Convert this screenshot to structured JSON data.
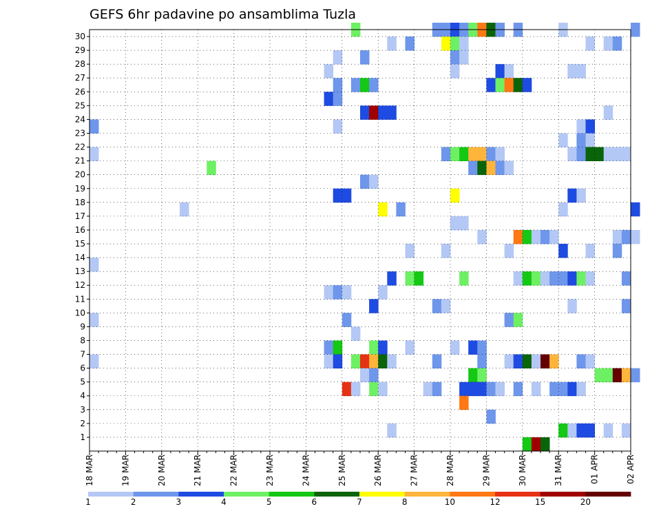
{
  "chart_data": {
    "type": "heatmap",
    "title": "GEFS 6hr padavine po ansamblima Tuzla",
    "x_tick_labels": [
      "18 MAR",
      "19 MAR",
      "20 MAR",
      "21 MAR",
      "22 MAR",
      "23 MAR",
      "24 MAR",
      "25 MAR",
      "26 MAR",
      "27 MAR",
      "28 MAR",
      "29 MAR",
      "30 MAR",
      "31 MAR",
      "01 APR",
      "02 APR"
    ],
    "y_tick_labels": [
      "1",
      "2",
      "3",
      "4",
      "5",
      "6",
      "7",
      "8",
      "9",
      "10",
      "11",
      "12",
      "13",
      "14",
      "15",
      "16",
      "17",
      "18",
      "19",
      "20",
      "21",
      "22",
      "23",
      "24",
      "25",
      "26",
      "27",
      "28",
      "29",
      "30"
    ],
    "x_range_days": [
      0,
      15
    ],
    "y_range_members": [
      0,
      30
    ],
    "grid": true,
    "grid_style": "dotted",
    "colorbar": {
      "labels": [
        "1",
        "2",
        "3",
        "4",
        "5",
        "6",
        "7",
        "8",
        "10",
        "12",
        "15",
        "20"
      ],
      "colors": [
        "#b4c8f5",
        "#6e96eb",
        "#1e4be1",
        "#6ef064",
        "#14c814",
        "#0a640a",
        "#ffff00",
        "#ffb43c",
        "#ff7814",
        "#e63214",
        "#a00000",
        "#640000"
      ]
    },
    "cells": [
      {
        "m": 30,
        "t": 29,
        "c": 3
      },
      {
        "m": 30,
        "t": 38,
        "c": 1
      },
      {
        "m": 30,
        "t": 39,
        "c": 1
      },
      {
        "m": 30,
        "t": 40,
        "c": 2
      },
      {
        "m": 30,
        "t": 41,
        "c": 1
      },
      {
        "m": 30,
        "t": 42,
        "c": 3
      },
      {
        "m": 30,
        "t": 43,
        "c": 8
      },
      {
        "m": 30,
        "t": 44,
        "c": 5
      },
      {
        "m": 30,
        "t": 45,
        "c": 1
      },
      {
        "m": 30,
        "t": 47,
        "c": 1
      },
      {
        "m": 30,
        "t": 52,
        "c": 0
      },
      {
        "m": 30,
        "t": 60,
        "c": 1
      },
      {
        "m": 29,
        "t": 33,
        "c": 0
      },
      {
        "m": 29,
        "t": 35,
        "c": 1
      },
      {
        "m": 29,
        "t": 39,
        "c": 6
      },
      {
        "m": 29,
        "t": 40,
        "c": 3
      },
      {
        "m": 29,
        "t": 41,
        "c": 0
      },
      {
        "m": 29,
        "t": 55,
        "c": 0
      },
      {
        "m": 29,
        "t": 57,
        "c": 0
      },
      {
        "m": 29,
        "t": 58,
        "c": 1
      },
      {
        "m": 28,
        "t": 27,
        "c": 0
      },
      {
        "m": 28,
        "t": 30,
        "c": 1
      },
      {
        "m": 28,
        "t": 40,
        "c": 1
      },
      {
        "m": 28,
        "t": 41,
        "c": 0
      },
      {
        "m": 27,
        "t": 26,
        "c": 0
      },
      {
        "m": 27,
        "t": 40,
        "c": 0
      },
      {
        "m": 27,
        "t": 45,
        "c": 2
      },
      {
        "m": 27,
        "t": 46,
        "c": 0
      },
      {
        "m": 27,
        "t": 53,
        "c": 0
      },
      {
        "m": 27,
        "t": 54,
        "c": 0
      },
      {
        "m": 26,
        "t": 27,
        "c": 1
      },
      {
        "m": 26,
        "t": 29,
        "c": 1
      },
      {
        "m": 26,
        "t": 30,
        "c": 4
      },
      {
        "m": 26,
        "t": 31,
        "c": 1
      },
      {
        "m": 26,
        "t": 44,
        "c": 2
      },
      {
        "m": 26,
        "t": 45,
        "c": 3
      },
      {
        "m": 26,
        "t": 46,
        "c": 8
      },
      {
        "m": 26,
        "t": 47,
        "c": 5
      },
      {
        "m": 26,
        "t": 48,
        "c": 2
      },
      {
        "m": 25,
        "t": 26,
        "c": 2
      },
      {
        "m": 25,
        "t": 27,
        "c": 1
      },
      {
        "m": 24,
        "t": 30,
        "c": 2
      },
      {
        "m": 24,
        "t": 31,
        "c": 10
      },
      {
        "m": 24,
        "t": 32,
        "c": 2
      },
      {
        "m": 24,
        "t": 33,
        "c": 2
      },
      {
        "m": 24,
        "t": 57,
        "c": 0
      },
      {
        "m": 23,
        "t": 0,
        "c": 1
      },
      {
        "m": 23,
        "t": 27,
        "c": 0
      },
      {
        "m": 23,
        "t": 54,
        "c": 0
      },
      {
        "m": 23,
        "t": 55,
        "c": 2
      },
      {
        "m": 22,
        "t": 52,
        "c": 0
      },
      {
        "m": 22,
        "t": 54,
        "c": 1
      },
      {
        "m": 22,
        "t": 55,
        "c": 0
      },
      {
        "m": 21,
        "t": 0,
        "c": 0
      },
      {
        "m": 21,
        "t": 39,
        "c": 1
      },
      {
        "m": 21,
        "t": 40,
        "c": 3
      },
      {
        "m": 21,
        "t": 41,
        "c": 4
      },
      {
        "m": 21,
        "t": 42,
        "c": 7
      },
      {
        "m": 21,
        "t": 43,
        "c": 7
      },
      {
        "m": 21,
        "t": 44,
        "c": 1
      },
      {
        "m": 21,
        "t": 45,
        "c": 0
      },
      {
        "m": 21,
        "t": 53,
        "c": 0
      },
      {
        "m": 21,
        "t": 54,
        "c": 1
      },
      {
        "m": 21,
        "t": 55,
        "c": 5
      },
      {
        "m": 21,
        "t": 56,
        "c": 5
      },
      {
        "m": 21,
        "t": 57,
        "c": 0
      },
      {
        "m": 21,
        "t": 58,
        "c": 0
      },
      {
        "m": 21,
        "t": 59,
        "c": 0
      },
      {
        "m": 20,
        "t": 13,
        "c": 3
      },
      {
        "m": 20,
        "t": 42,
        "c": 1
      },
      {
        "m": 20,
        "t": 43,
        "c": 5
      },
      {
        "m": 20,
        "t": 44,
        "c": 7
      },
      {
        "m": 20,
        "t": 45,
        "c": 1
      },
      {
        "m": 20,
        "t": 46,
        "c": 0
      },
      {
        "m": 19,
        "t": 30,
        "c": 1
      },
      {
        "m": 19,
        "t": 31,
        "c": 0
      },
      {
        "m": 18,
        "t": 27,
        "c": 2
      },
      {
        "m": 18,
        "t": 28,
        "c": 2
      },
      {
        "m": 18,
        "t": 40,
        "c": 6
      },
      {
        "m": 18,
        "t": 53,
        "c": 2
      },
      {
        "m": 18,
        "t": 54,
        "c": 0
      },
      {
        "m": 17,
        "t": 10,
        "c": 0
      },
      {
        "m": 17,
        "t": 32,
        "c": 6
      },
      {
        "m": 17,
        "t": 34,
        "c": 1
      },
      {
        "m": 17,
        "t": 52,
        "c": 0
      },
      {
        "m": 17,
        "t": 60,
        "c": 2
      },
      {
        "m": 16,
        "t": 40,
        "c": 0
      },
      {
        "m": 16,
        "t": 41,
        "c": 0
      },
      {
        "m": 15,
        "t": 43,
        "c": 0
      },
      {
        "m": 15,
        "t": 47,
        "c": 8
      },
      {
        "m": 15,
        "t": 48,
        "c": 4
      },
      {
        "m": 15,
        "t": 49,
        "c": 0
      },
      {
        "m": 15,
        "t": 50,
        "c": 1
      },
      {
        "m": 15,
        "t": 51,
        "c": 0
      },
      {
        "m": 15,
        "t": 58,
        "c": 0
      },
      {
        "m": 15,
        "t": 59,
        "c": 1
      },
      {
        "m": 15,
        "t": 60,
        "c": 0
      },
      {
        "m": 14,
        "t": 35,
        "c": 0
      },
      {
        "m": 14,
        "t": 39,
        "c": 0
      },
      {
        "m": 14,
        "t": 46,
        "c": 0
      },
      {
        "m": 14,
        "t": 52,
        "c": 2
      },
      {
        "m": 14,
        "t": 55,
        "c": 0
      },
      {
        "m": 14,
        "t": 58,
        "c": 1
      },
      {
        "m": 13,
        "t": 0,
        "c": 0
      },
      {
        "m": 12,
        "t": 33,
        "c": 2
      },
      {
        "m": 12,
        "t": 35,
        "c": 3
      },
      {
        "m": 12,
        "t": 36,
        "c": 4
      },
      {
        "m": 12,
        "t": 41,
        "c": 3
      },
      {
        "m": 12,
        "t": 47,
        "c": 0
      },
      {
        "m": 12,
        "t": 48,
        "c": 4
      },
      {
        "m": 12,
        "t": 49,
        "c": 3
      },
      {
        "m": 12,
        "t": 50,
        "c": 0
      },
      {
        "m": 12,
        "t": 51,
        "c": 1
      },
      {
        "m": 12,
        "t": 52,
        "c": 1
      },
      {
        "m": 12,
        "t": 53,
        "c": 2
      },
      {
        "m": 12,
        "t": 54,
        "c": 3
      },
      {
        "m": 12,
        "t": 55,
        "c": 0
      },
      {
        "m": 12,
        "t": 59,
        "c": 1
      },
      {
        "m": 11,
        "t": 26,
        "c": 0
      },
      {
        "m": 11,
        "t": 27,
        "c": 1
      },
      {
        "m": 11,
        "t": 28,
        "c": 0
      },
      {
        "m": 11,
        "t": 32,
        "c": 0
      },
      {
        "m": 10,
        "t": 31,
        "c": 2
      },
      {
        "m": 10,
        "t": 38,
        "c": 1
      },
      {
        "m": 10,
        "t": 39,
        "c": 0
      },
      {
        "m": 10,
        "t": 53,
        "c": 0
      },
      {
        "m": 10,
        "t": 59,
        "c": 1
      },
      {
        "m": 9,
        "t": 0,
        "c": 0
      },
      {
        "m": 9,
        "t": 28,
        "c": 1
      },
      {
        "m": 9,
        "t": 46,
        "c": 1
      },
      {
        "m": 9,
        "t": 47,
        "c": 3
      },
      {
        "m": 8,
        "t": 29,
        "c": 0
      },
      {
        "m": 7,
        "t": 26,
        "c": 1
      },
      {
        "m": 7,
        "t": 27,
        "c": 4
      },
      {
        "m": 7,
        "t": 31,
        "c": 3
      },
      {
        "m": 7,
        "t": 32,
        "c": 2
      },
      {
        "m": 7,
        "t": 35,
        "c": 0
      },
      {
        "m": 7,
        "t": 40,
        "c": 0
      },
      {
        "m": 7,
        "t": 42,
        "c": 2
      },
      {
        "m": 7,
        "t": 43,
        "c": 1
      },
      {
        "m": 6,
        "t": 0,
        "c": 0
      },
      {
        "m": 6,
        "t": 26,
        "c": 0
      },
      {
        "m": 6,
        "t": 27,
        "c": 2
      },
      {
        "m": 6,
        "t": 29,
        "c": 3
      },
      {
        "m": 6,
        "t": 30,
        "c": 9
      },
      {
        "m": 6,
        "t": 31,
        "c": 7
      },
      {
        "m": 6,
        "t": 32,
        "c": 5
      },
      {
        "m": 6,
        "t": 33,
        "c": 0
      },
      {
        "m": 6,
        "t": 38,
        "c": 1
      },
      {
        "m": 6,
        "t": 43,
        "c": 1
      },
      {
        "m": 6,
        "t": 46,
        "c": 0
      },
      {
        "m": 6,
        "t": 47,
        "c": 2
      },
      {
        "m": 6,
        "t": 48,
        "c": 5
      },
      {
        "m": 6,
        "t": 49,
        "c": 0
      },
      {
        "m": 6,
        "t": 50,
        "c": 11
      },
      {
        "m": 6,
        "t": 51,
        "c": 7
      },
      {
        "m": 6,
        "t": 54,
        "c": 1
      },
      {
        "m": 6,
        "t": 55,
        "c": 0
      },
      {
        "m": 5,
        "t": 30,
        "c": 0
      },
      {
        "m": 5,
        "t": 31,
        "c": 1
      },
      {
        "m": 5,
        "t": 42,
        "c": 4
      },
      {
        "m": 5,
        "t": 43,
        "c": 3
      },
      {
        "m": 5,
        "t": 56,
        "c": 3
      },
      {
        "m": 5,
        "t": 57,
        "c": 3
      },
      {
        "m": 5,
        "t": 58,
        "c": 11
      },
      {
        "m": 5,
        "t": 59,
        "c": 7
      },
      {
        "m": 5,
        "t": 60,
        "c": 1
      },
      {
        "m": 4,
        "t": 28,
        "c": 9
      },
      {
        "m": 4,
        "t": 29,
        "c": 0
      },
      {
        "m": 4,
        "t": 31,
        "c": 3
      },
      {
        "m": 4,
        "t": 32,
        "c": 0
      },
      {
        "m": 4,
        "t": 37,
        "c": 0
      },
      {
        "m": 4,
        "t": 38,
        "c": 1
      },
      {
        "m": 4,
        "t": 41,
        "c": 2
      },
      {
        "m": 4,
        "t": 42,
        "c": 2
      },
      {
        "m": 4,
        "t": 43,
        "c": 2
      },
      {
        "m": 4,
        "t": 44,
        "c": 1
      },
      {
        "m": 4,
        "t": 45,
        "c": 0
      },
      {
        "m": 4,
        "t": 47,
        "c": 1
      },
      {
        "m": 4,
        "t": 49,
        "c": 0
      },
      {
        "m": 4,
        "t": 51,
        "c": 1
      },
      {
        "m": 4,
        "t": 52,
        "c": 1
      },
      {
        "m": 4,
        "t": 53,
        "c": 2
      },
      {
        "m": 4,
        "t": 54,
        "c": 0
      },
      {
        "m": 3,
        "t": 41,
        "c": 8
      },
      {
        "m": 2,
        "t": 44,
        "c": 1
      },
      {
        "m": 1,
        "t": 33,
        "c": 0
      },
      {
        "m": 1,
        "t": 52,
        "c": 4
      },
      {
        "m": 1,
        "t": 53,
        "c": 0
      },
      {
        "m": 1,
        "t": 54,
        "c": 2
      },
      {
        "m": 1,
        "t": 55,
        "c": 2
      },
      {
        "m": 1,
        "t": 57,
        "c": 0
      },
      {
        "m": 1,
        "t": 59,
        "c": 0
      },
      {
        "m": 0,
        "t": 48,
        "c": 4
      },
      {
        "m": 0,
        "t": 49,
        "c": 10
      },
      {
        "m": 0,
        "t": 50,
        "c": 5
      }
    ]
  }
}
